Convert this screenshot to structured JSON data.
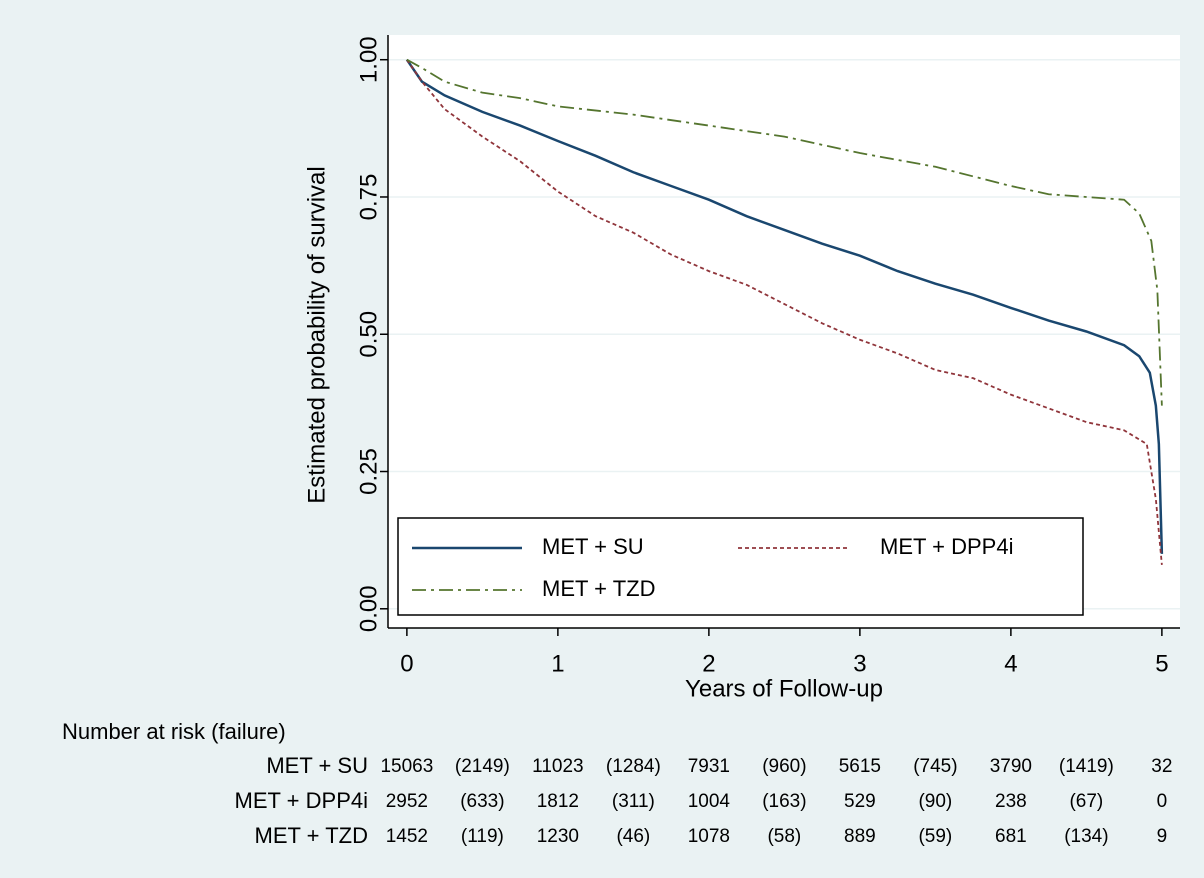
{
  "chart_data": {
    "type": "line",
    "ylabel": "Estimated probability of survival",
    "xlabel": "Years of Follow-up",
    "xlim": [
      -0.125,
      5.12
    ],
    "ylim": [
      -0.035,
      1.045
    ],
    "xticks": [
      0,
      1,
      2,
      3,
      4,
      5
    ],
    "yticks": [
      {
        "value": 0,
        "label": "0.00"
      },
      {
        "value": 0.25,
        "label": "0.25"
      },
      {
        "value": 0.5,
        "label": "0.50"
      },
      {
        "value": 0.75,
        "label": "0.75"
      },
      {
        "value": 1,
        "label": "1.00"
      }
    ],
    "grid": true,
    "series": [
      {
        "name": "MET + SU",
        "color": "#1a476f",
        "dash": "none",
        "x": [
          0,
          0.1,
          0.25,
          0.5,
          0.75,
          1,
          1.25,
          1.5,
          1.75,
          2,
          2.25,
          2.5,
          2.75,
          3,
          3.25,
          3.5,
          3.75,
          4,
          4.25,
          4.5,
          4.75,
          4.85,
          4.92,
          4.96,
          4.98,
          5
        ],
        "values": [
          1,
          0.96,
          0.935,
          0.905,
          0.88,
          0.852,
          0.825,
          0.795,
          0.77,
          0.745,
          0.715,
          0.69,
          0.665,
          0.643,
          0.615,
          0.592,
          0.572,
          0.548,
          0.525,
          0.505,
          0.48,
          0.46,
          0.43,
          0.37,
          0.3,
          0.1
        ]
      },
      {
        "name": "MET + DPP4i",
        "color": "#90353b",
        "dash": "4 3",
        "x": [
          0,
          0.1,
          0.25,
          0.5,
          0.75,
          1,
          1.25,
          1.5,
          1.75,
          2,
          2.25,
          2.5,
          2.75,
          3,
          3.25,
          3.5,
          3.75,
          4,
          4.25,
          4.5,
          4.75,
          4.9,
          4.96,
          5
        ],
        "values": [
          1,
          0.96,
          0.91,
          0.86,
          0.815,
          0.76,
          0.715,
          0.685,
          0.645,
          0.615,
          0.59,
          0.555,
          0.52,
          0.49,
          0.465,
          0.435,
          0.42,
          0.39,
          0.365,
          0.34,
          0.325,
          0.3,
          0.2,
          0.08
        ]
      },
      {
        "name": "MET + TZD",
        "color": "#55752f",
        "dash": "14 5 3 5",
        "x": [
          0,
          0.1,
          0.25,
          0.5,
          0.75,
          1,
          1.5,
          2,
          2.5,
          3,
          3.5,
          4,
          4.25,
          4.5,
          4.75,
          4.85,
          4.93,
          4.97,
          5
        ],
        "values": [
          1,
          0.985,
          0.96,
          0.94,
          0.93,
          0.915,
          0.9,
          0.88,
          0.86,
          0.83,
          0.805,
          0.77,
          0.755,
          0.75,
          0.745,
          0.72,
          0.67,
          0.58,
          0.37
        ]
      }
    ],
    "risk_table": {
      "title": "Number at risk (failure)",
      "rows": [
        {
          "name": "MET + SU",
          "at_risk": [
            15063,
            11023,
            7931,
            5615,
            3790,
            32
          ],
          "failures": [
            "(2149)",
            "(1284)",
            "(960)",
            "(745)",
            "(1419)"
          ]
        },
        {
          "name": "MET + DPP4i",
          "at_risk": [
            2952,
            1812,
            1004,
            529,
            238,
            0
          ],
          "failures": [
            "(633)",
            "(311)",
            "(163)",
            "(90)",
            "(67)"
          ]
        },
        {
          "name": "MET + TZD",
          "at_risk": [
            1452,
            1230,
            1078,
            889,
            681,
            9
          ],
          "failures": [
            "(119)",
            "(46)",
            "(58)",
            "(59)",
            "(134)"
          ]
        }
      ]
    }
  }
}
